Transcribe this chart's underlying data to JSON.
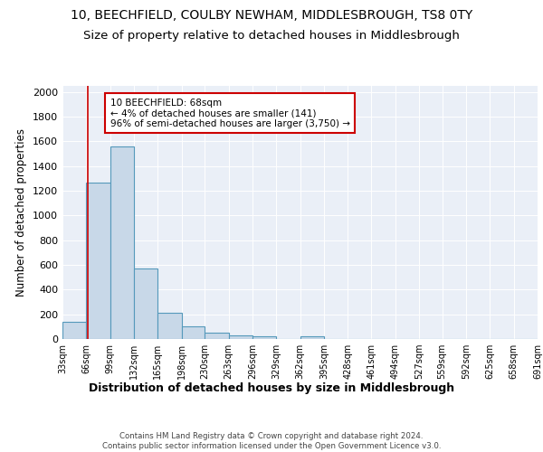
{
  "title1": "10, BEECHFIELD, COULBY NEWHAM, MIDDLESBROUGH, TS8 0TY",
  "title2": "Size of property relative to detached houses in Middlesbrough",
  "xlabel": "Distribution of detached houses by size in Middlesbrough",
  "ylabel": "Number of detached properties",
  "bin_labels": [
    "33sqm",
    "66sqm",
    "99sqm",
    "132sqm",
    "165sqm",
    "198sqm",
    "230sqm",
    "263sqm",
    "296sqm",
    "329sqm",
    "362sqm",
    "395sqm",
    "428sqm",
    "461sqm",
    "494sqm",
    "527sqm",
    "559sqm",
    "592sqm",
    "625sqm",
    "658sqm",
    "691sqm"
  ],
  "bin_edges": [
    33,
    66,
    99,
    132,
    165,
    198,
    230,
    263,
    296,
    329,
    362,
    395,
    428,
    461,
    494,
    527,
    559,
    592,
    625,
    658,
    691
  ],
  "bar_heights": [
    140,
    1265,
    1560,
    570,
    215,
    100,
    50,
    28,
    25,
    0,
    20,
    0,
    0,
    0,
    0,
    0,
    0,
    0,
    0,
    0
  ],
  "bar_color": "#c8d8e8",
  "bar_edge_color": "#5599bb",
  "vline_x": 68,
  "vline_color": "#cc0000",
  "annotation_text": "10 BEECHFIELD: 68sqm\n← 4% of detached houses are smaller (141)\n96% of semi-detached houses are larger (3,750) →",
  "annotation_box_color": "white",
  "annotation_box_edge": "#cc0000",
  "ylim": [
    0,
    2050
  ],
  "yticks": [
    0,
    200,
    400,
    600,
    800,
    1000,
    1200,
    1400,
    1600,
    1800,
    2000
  ],
  "background_color": "#eaeff7",
  "footer_text": "Contains HM Land Registry data © Crown copyright and database right 2024.\nContains public sector information licensed under the Open Government Licence v3.0.",
  "title1_fontsize": 10,
  "title2_fontsize": 9.5,
  "xlabel_fontsize": 9,
  "ylabel_fontsize": 8.5
}
